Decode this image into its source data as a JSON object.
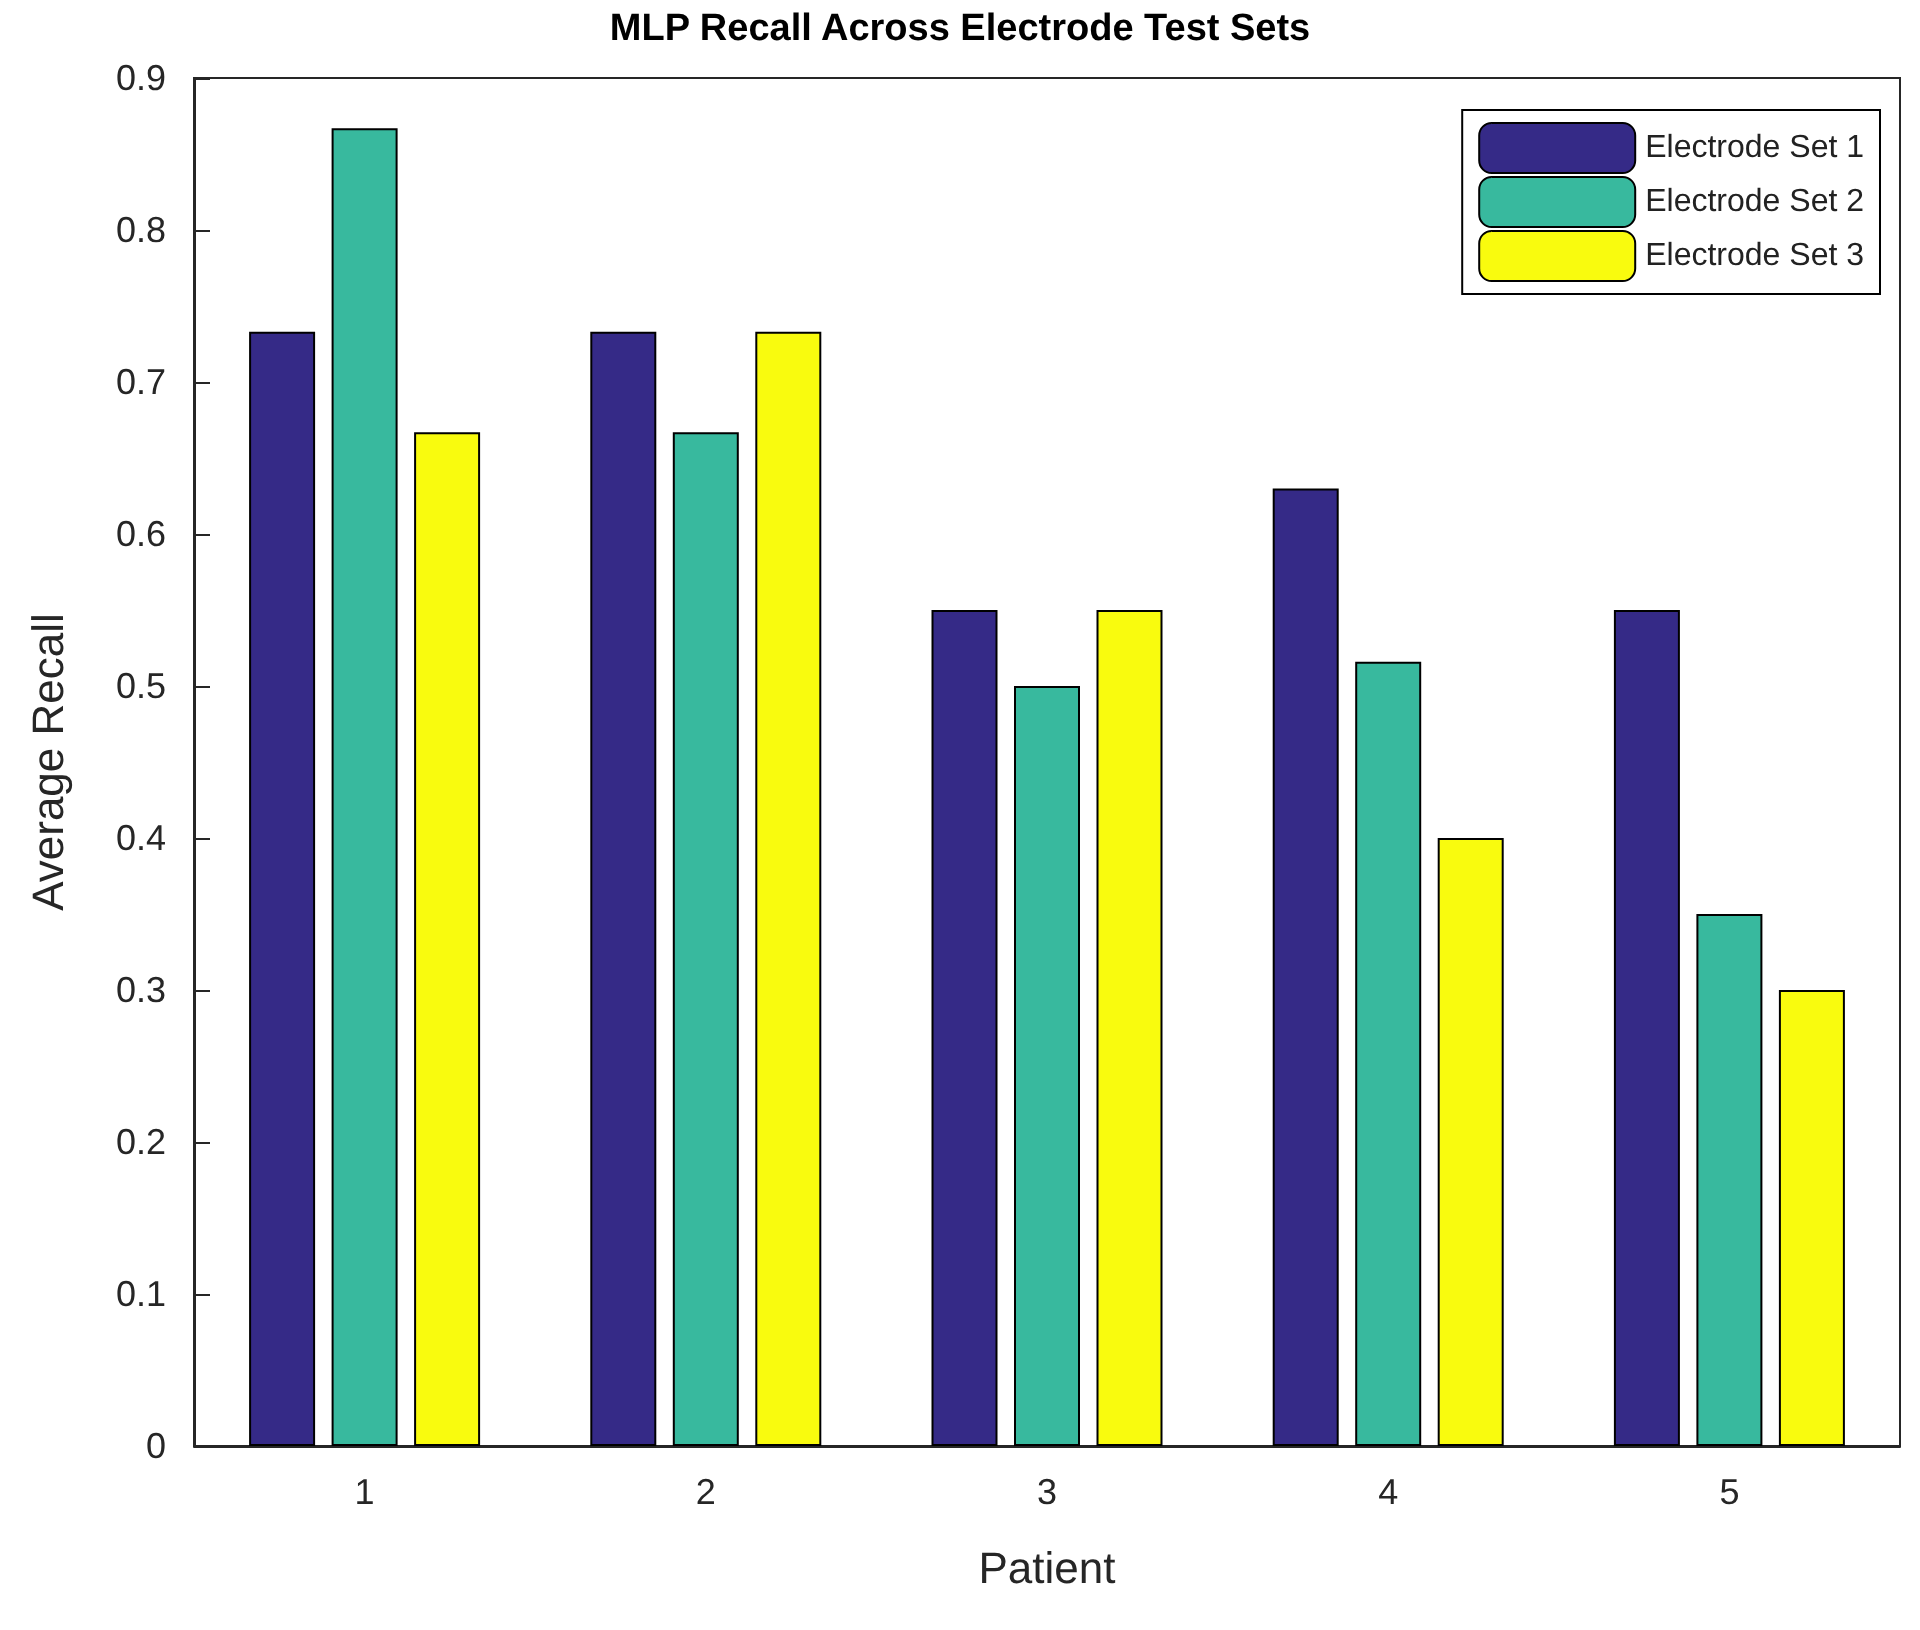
{
  "chart_data": {
    "type": "bar",
    "title": "MLP Recall Across Electrode Test Sets",
    "xlabel": "Patient",
    "ylabel": "Average Recall",
    "categories": [
      "1",
      "2",
      "3",
      "4",
      "5"
    ],
    "series": [
      {
        "name": "Electrode Set 1",
        "color": "#352a87",
        "values": [
          0.733,
          0.733,
          0.55,
          0.63,
          0.55
        ]
      },
      {
        "name": "Electrode Set 2",
        "color": "#38b99e",
        "values": [
          0.867,
          0.667,
          0.5,
          0.516,
          0.35
        ]
      },
      {
        "name": "Electrode Set 3",
        "color": "#f9fb0e",
        "values": [
          0.667,
          0.733,
          0.55,
          0.4,
          0.3
        ]
      }
    ],
    "ylim": [
      0,
      0.9
    ],
    "yticks": [
      0,
      0.1,
      0.2,
      0.3,
      0.4,
      0.5,
      0.6,
      0.7,
      0.8,
      0.9
    ],
    "grid": false,
    "legend": "top right"
  }
}
